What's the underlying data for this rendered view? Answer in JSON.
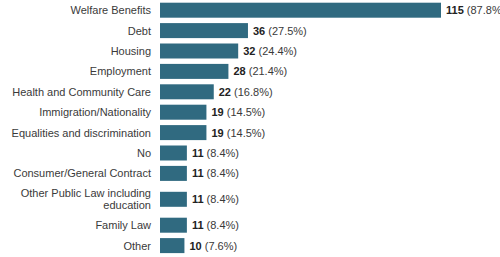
{
  "chart_data": {
    "type": "bar",
    "orientation": "horizontal",
    "categories": [
      "Welfare Benefits",
      "Debt",
      "Housing",
      "Employment",
      "Health and Community Care",
      "Immigration/Nationality",
      "Equalities and discrimination",
      "No",
      "Consumer/General Contract",
      "Other Public Law including education",
      "Family Law",
      "Other"
    ],
    "values": [
      115,
      36,
      32,
      28,
      22,
      19,
      19,
      11,
      11,
      11,
      11,
      10
    ],
    "value_labels": [
      "115 (87.8%)",
      "36 (27.5%)",
      "32 (24.4%)",
      "28 (21.4%)",
      "22 (16.8%)",
      "19 (14.5%)",
      "19 (14.5%)",
      "11 (8.4%)",
      "11 (8.4%)",
      "11 (8.4%)",
      "11 (8.4%)",
      "10 (7.6%)"
    ],
    "color": "#306a80",
    "ylim": [
      0,
      115
    ],
    "grid": false,
    "data_labels": true,
    "tick_labels": "y"
  }
}
